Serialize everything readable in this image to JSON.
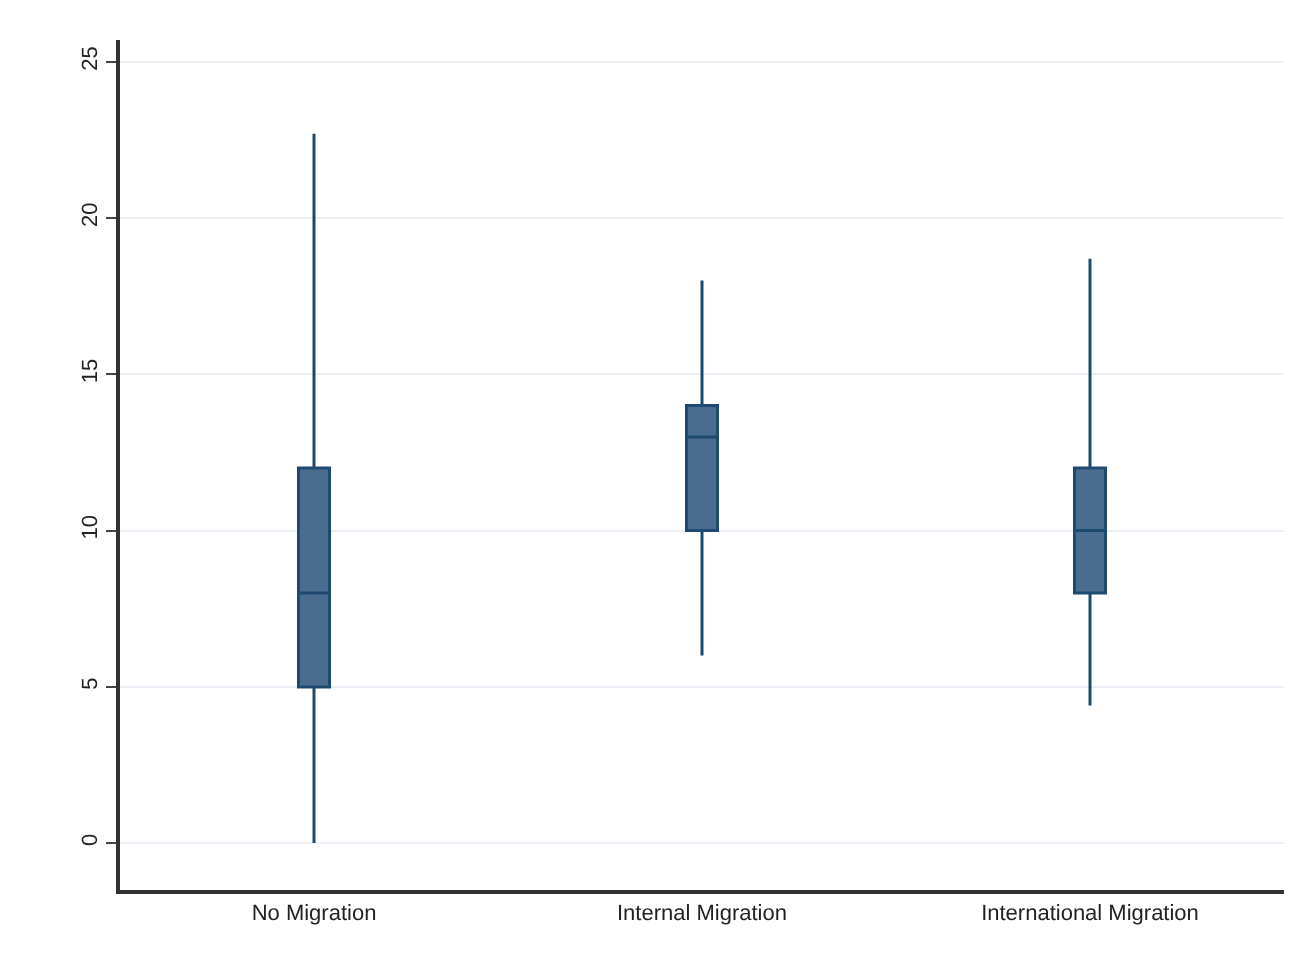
{
  "chart_data": {
    "type": "box",
    "categories": [
      "No Migration",
      "Internal Migration",
      "International Migration"
    ],
    "boxes": [
      {
        "low": 0,
        "q1": 5,
        "median": 8,
        "q3": 12,
        "high": 22.7
      },
      {
        "low": 6,
        "q1": 10,
        "median": 13,
        "q3": 14,
        "high": 18
      },
      {
        "low": 4.4,
        "q1": 8,
        "median": 10,
        "q3": 12,
        "high": 18.7
      }
    ],
    "color": "#4a6d8f",
    "ylim": [
      -1.5,
      25.7
    ],
    "yticks": [
      0,
      5,
      10,
      15,
      20,
      25
    ],
    "grid": "y",
    "legend": false
  }
}
